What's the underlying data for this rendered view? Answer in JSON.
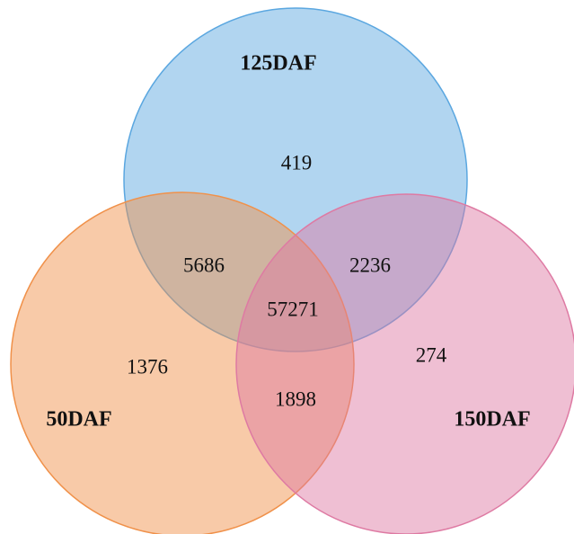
{
  "chart_data": {
    "type": "venn",
    "sets": [
      {
        "name": "125DAF",
        "color": "#5ba7e0"
      },
      {
        "name": "50DAF",
        "color": "#f0914a"
      },
      {
        "name": "150DAF",
        "color": "#de7aa3"
      }
    ],
    "regions": [
      {
        "sets": [
          0
        ],
        "value": 419
      },
      {
        "sets": [
          0,
          1
        ],
        "value": 5686
      },
      {
        "sets": [
          0,
          2
        ],
        "value": 2236
      },
      {
        "sets": [
          0,
          1,
          2
        ],
        "value": 57271
      },
      {
        "sets": [
          1
        ],
        "value": 1376
      },
      {
        "sets": [
          2
        ],
        "value": 274
      },
      {
        "sets": [
          1,
          2
        ],
        "value": 1898
      }
    ]
  }
}
